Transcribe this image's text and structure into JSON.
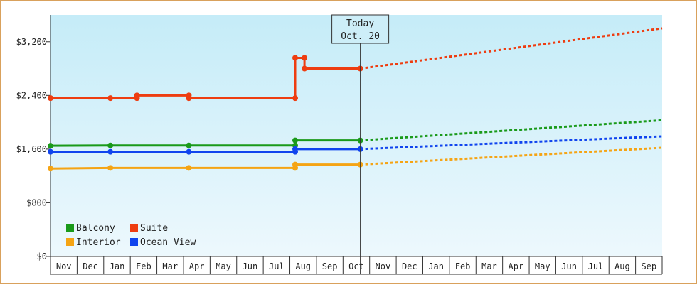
{
  "chart_data": {
    "type": "line",
    "title": "",
    "xlabel": "",
    "ylabel": "",
    "ylim": [
      0,
      3600
    ],
    "yticks": [
      {
        "value": 0,
        "label": "$0"
      },
      {
        "value": 800,
        "label": "$800"
      },
      {
        "value": 1600,
        "label": "$1,600"
      },
      {
        "value": 2400,
        "label": "$2,400"
      },
      {
        "value": 3200,
        "label": "$3,200"
      }
    ],
    "months": [
      "Nov",
      "Dec",
      "Jan",
      "Feb",
      "Mar",
      "Apr",
      "May",
      "Jun",
      "Jul",
      "Aug",
      "Sep",
      "Oct",
      "Nov",
      "Dec",
      "Jan",
      "Feb",
      "Mar",
      "Apr",
      "May",
      "Jun",
      "Jul",
      "Aug",
      "Sep"
    ],
    "x_unit": "month index from start of axis (0 = start of first Nov)",
    "today": {
      "line1": "Today",
      "line2": "Oct. 20",
      "x": 11.65
    },
    "legend": {
      "placement": "bottom-left"
    },
    "series": [
      {
        "name": "Balcony",
        "color": "#1a9a1a",
        "history": [
          [
            0,
            1650
          ],
          [
            2.25,
            1655
          ],
          [
            5.2,
            1655
          ],
          [
            9.2,
            1655
          ],
          [
            9.2,
            1730
          ],
          [
            11.65,
            1730
          ]
        ],
        "markers": [
          [
            0,
            1650
          ],
          [
            2.25,
            1655
          ],
          [
            5.2,
            1655
          ],
          [
            9.2,
            1655
          ],
          [
            9.2,
            1730
          ],
          [
            11.65,
            1730
          ]
        ],
        "forecast": [
          [
            11.65,
            1730
          ],
          [
            23,
            2030
          ]
        ]
      },
      {
        "name": "Suite",
        "color": "#ee3d11",
        "history": [
          [
            0,
            2360
          ],
          [
            2.25,
            2360
          ],
          [
            3.25,
            2360
          ],
          [
            3.25,
            2400
          ],
          [
            5.2,
            2400
          ],
          [
            5.2,
            2360
          ],
          [
            9.2,
            2360
          ],
          [
            9.2,
            2960
          ],
          [
            9.55,
            2960
          ],
          [
            9.55,
            2800
          ],
          [
            11.65,
            2800
          ]
        ],
        "markers": [
          [
            0,
            2360
          ],
          [
            2.25,
            2360
          ],
          [
            3.25,
            2360
          ],
          [
            3.25,
            2400
          ],
          [
            5.2,
            2400
          ],
          [
            5.2,
            2360
          ],
          [
            9.2,
            2360
          ],
          [
            9.2,
            2960
          ],
          [
            9.55,
            2960
          ],
          [
            9.55,
            2800
          ],
          [
            11.65,
            2800
          ]
        ],
        "forecast": [
          [
            11.65,
            2800
          ],
          [
            23,
            3400
          ]
        ]
      },
      {
        "name": "Interior",
        "color": "#f5a414",
        "history": [
          [
            0,
            1310
          ],
          [
            2.25,
            1320
          ],
          [
            5.2,
            1320
          ],
          [
            9.2,
            1320
          ],
          [
            9.2,
            1370
          ],
          [
            11.65,
            1370
          ]
        ],
        "markers": [
          [
            0,
            1310
          ],
          [
            2.25,
            1320
          ],
          [
            5.2,
            1320
          ],
          [
            9.2,
            1320
          ],
          [
            9.2,
            1370
          ],
          [
            11.65,
            1370
          ]
        ],
        "forecast": [
          [
            11.65,
            1370
          ],
          [
            23,
            1620
          ]
        ]
      },
      {
        "name": "Ocean View",
        "color": "#1044ee",
        "history": [
          [
            0,
            1560
          ],
          [
            2.25,
            1560
          ],
          [
            5.2,
            1560
          ],
          [
            9.2,
            1560
          ],
          [
            9.2,
            1600
          ],
          [
            11.65,
            1600
          ]
        ],
        "markers": [
          [
            0,
            1560
          ],
          [
            2.25,
            1560
          ],
          [
            5.2,
            1560
          ],
          [
            9.2,
            1560
          ],
          [
            9.2,
            1600
          ],
          [
            11.65,
            1600
          ]
        ],
        "forecast": [
          [
            11.65,
            1600
          ],
          [
            23,
            1790
          ]
        ]
      }
    ]
  }
}
